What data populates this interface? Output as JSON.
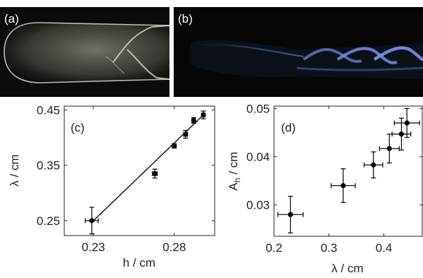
{
  "panels": {
    "a": {
      "label": "(a)"
    },
    "b": {
      "label": "(b)"
    }
  },
  "colors": {
    "axis": "#222222",
    "marker": "#000000",
    "photo_background": "#0a0a0a",
    "flame_a": "#d9d6c9",
    "flame_b": "#6f83d8"
  },
  "chart_data": [
    {
      "id": "c",
      "type": "scatter",
      "panel_label": "(c)",
      "xlabel": "h / cm",
      "ylabel": "λ / cm",
      "xlim": [
        0.212,
        0.305
      ],
      "ylim": [
        0.223,
        0.457
      ],
      "xticks": [
        0.23,
        0.28
      ],
      "xtick_labels": [
        "0.23",
        "0.28"
      ],
      "yticks": [
        0.25,
        0.35,
        0.45
      ],
      "ytick_labels": [
        "0.25",
        "0.35",
        "0.45"
      ],
      "points": [
        {
          "x": 0.229,
          "y": 0.25,
          "xerr": 0.004,
          "yerr": 0.024
        },
        {
          "x": 0.268,
          "y": 0.335,
          "xerr": 0.0015,
          "yerr": 0.008
        },
        {
          "x": 0.28,
          "y": 0.385,
          "xerr": 0.0012,
          "yerr": 0.004
        },
        {
          "x": 0.287,
          "y": 0.406,
          "xerr": 0.0012,
          "yerr": 0.007
        },
        {
          "x": 0.292,
          "y": 0.431,
          "xerr": 0.001,
          "yerr": 0.005
        },
        {
          "x": 0.298,
          "y": 0.441,
          "xerr": 0.001,
          "yerr": 0.007
        }
      ],
      "fit_line": {
        "x": [
          0.229,
          0.298
        ],
        "y": [
          0.247,
          0.441
        ]
      }
    },
    {
      "id": "d",
      "type": "scatter",
      "panel_label": "(d)",
      "xlabel": "λ / cm",
      "ylabel": "A_h / cm",
      "ylabel_main": "A",
      "ylabel_sub": "h",
      "ylabel_rest": " / cm",
      "xlim": [
        0.2,
        0.47
      ],
      "ylim": [
        0.0235,
        0.0505
      ],
      "xticks": [
        0.2,
        0.3,
        0.4
      ],
      "xtick_labels": [
        "0.2",
        "0.3",
        "0.4"
      ],
      "yticks": [
        0.03,
        0.04,
        0.05
      ],
      "ytick_labels": [
        "0.03",
        "0.04",
        "0.05"
      ],
      "points": [
        {
          "x": 0.23,
          "y": 0.028,
          "xerr": 0.023,
          "yerr": 0.0038
        },
        {
          "x": 0.326,
          "y": 0.034,
          "xerr": 0.022,
          "yerr": 0.0035
        },
        {
          "x": 0.381,
          "y": 0.0383,
          "xerr": 0.017,
          "yerr": 0.0027
        },
        {
          "x": 0.41,
          "y": 0.0417,
          "xerr": 0.018,
          "yerr": 0.003
        },
        {
          "x": 0.432,
          "y": 0.0447,
          "xerr": 0.017,
          "yerr": 0.0033
        },
        {
          "x": 0.442,
          "y": 0.047,
          "xerr": 0.023,
          "yerr": 0.003
        }
      ]
    }
  ]
}
